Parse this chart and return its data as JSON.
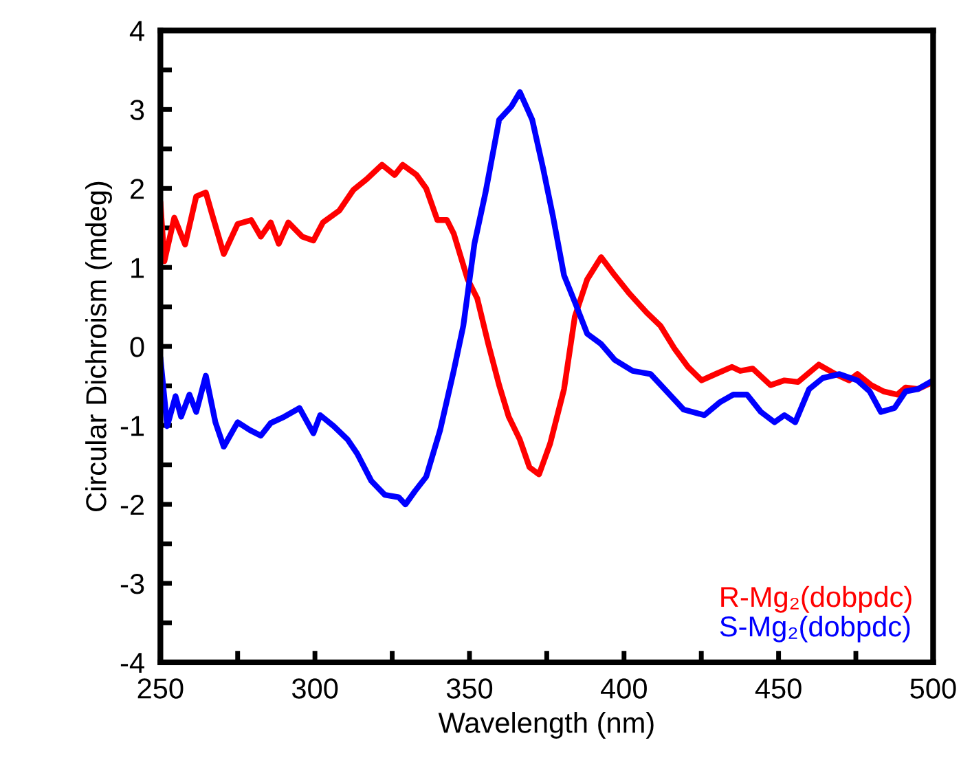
{
  "chart_data": {
    "type": "line",
    "xlabel": "Wavelength (nm)",
    "ylabel": "Circular Dichroism (mdeg)",
    "xlim": [
      250,
      500
    ],
    "ylim": [
      -4,
      4
    ],
    "xticks": [
      250,
      {
        "value": 275,
        "label": null
      },
      300,
      {
        "value": 325,
        "label": null
      },
      350,
      {
        "value": 375,
        "label": null
      },
      400,
      {
        "value": 425,
        "label": null
      },
      450,
      {
        "value": 475,
        "label": null
      },
      500
    ],
    "yticks": [
      -4,
      {
        "value": -3.5,
        "label": null
      },
      -3,
      {
        "value": -2.5,
        "label": null
      },
      -2,
      {
        "value": -1.5,
        "label": null
      },
      -1,
      {
        "value": -0.5,
        "label": null
      },
      0,
      {
        "value": 0.5,
        "label": null
      },
      1,
      {
        "value": 1.5,
        "label": null
      },
      2,
      {
        "value": 2.5,
        "label": null
      },
      3,
      {
        "value": 3.5,
        "label": null
      },
      4
    ],
    "grid": false,
    "legend": "bottom right",
    "marker": "none",
    "line_style": "solid",
    "series": [
      {
        "name": "R-Mg₂(dobpdc)",
        "color": "#ff0000",
        "x": [
          250,
          251.3,
          254.5,
          258,
          261.6,
          264.7,
          266.9,
          270.5,
          275,
          279.4,
          282.5,
          285.7,
          288.3,
          291.4,
          295.9,
          299.5,
          302.6,
          307.9,
          312.4,
          316.8,
          321.7,
          325.8,
          328.4,
          332.9,
          336,
          339.6,
          342.7,
          344.9,
          349.4,
          352.5,
          356.1,
          359.6,
          362.7,
          366.3,
          369.4,
          372.5,
          376.1,
          380.6,
          384.1,
          388.1,
          392.6,
          397,
          401.5,
          407.3,
          411.8,
          416.2,
          420.7,
          425.1,
          429.6,
          434.9,
          437.6,
          441.6,
          447.4,
          451.9,
          456.3,
          463,
          468.4,
          472.8,
          475.5,
          480,
          484,
          488.4,
          491.1,
          495.1,
          500
        ],
        "values": [
          1.83,
          1.08,
          1.63,
          1.29,
          1.9,
          1.95,
          1.65,
          1.17,
          1.55,
          1.6,
          1.39,
          1.57,
          1.3,
          1.57,
          1.39,
          1.34,
          1.57,
          1.72,
          1.98,
          2.12,
          2.3,
          2.17,
          2.3,
          2.17,
          2.0,
          1.6,
          1.6,
          1.43,
          0.85,
          0.61,
          0.03,
          -0.49,
          -0.89,
          -1.18,
          -1.53,
          -1.62,
          -1.23,
          -0.54,
          0.38,
          0.85,
          1.13,
          0.9,
          0.68,
          0.43,
          0.26,
          -0.02,
          -0.26,
          -0.43,
          -0.35,
          -0.26,
          -0.31,
          -0.28,
          -0.49,
          -0.43,
          -0.45,
          -0.23,
          -0.35,
          -0.43,
          -0.35,
          -0.49,
          -0.57,
          -0.61,
          -0.52,
          -0.54,
          -0.45
        ]
      },
      {
        "name": "S-Mg₂(dobpdc)",
        "color": "#0000ff",
        "x": [
          250,
          252.2,
          254.9,
          256.7,
          259.4,
          261.6,
          264.7,
          267.8,
          270.5,
          275,
          279,
          282.5,
          285.7,
          290.1,
          295,
          299.5,
          301.7,
          306.1,
          310.6,
          313.7,
          318.2,
          322.6,
          327.1,
          329.3,
          332.4,
          336,
          340.5,
          344.9,
          348,
          351.6,
          355.2,
          359.6,
          363.6,
          366.3,
          370.3,
          373.9,
          377,
          380.6,
          384.1,
          388.1,
          392.6,
          397,
          402.8,
          408.6,
          413.1,
          419.3,
          426,
          430.9,
          435.4,
          439.8,
          444.3,
          448.7,
          451.9,
          455.4,
          459.9,
          464.3,
          469.7,
          475.5,
          479.5,
          483.1,
          487.5,
          491.1,
          495.1,
          500
        ],
        "values": [
          -0.14,
          -1.01,
          -0.63,
          -0.89,
          -0.61,
          -0.83,
          -0.37,
          -0.96,
          -1.27,
          -0.96,
          -1.06,
          -1.13,
          -0.97,
          -0.89,
          -0.78,
          -1.1,
          -0.87,
          -1.01,
          -1.18,
          -1.36,
          -1.7,
          -1.88,
          -1.91,
          -2.0,
          -1.83,
          -1.65,
          -1.06,
          -0.31,
          0.26,
          1.3,
          1.95,
          2.87,
          3.04,
          3.22,
          2.87,
          2.24,
          1.65,
          0.9,
          0.56,
          0.16,
          0.03,
          -0.17,
          -0.31,
          -0.35,
          -0.54,
          -0.8,
          -0.87,
          -0.71,
          -0.61,
          -0.61,
          -0.83,
          -0.96,
          -0.87,
          -0.96,
          -0.54,
          -0.4,
          -0.35,
          -0.43,
          -0.57,
          -0.83,
          -0.78,
          -0.57,
          -0.54,
          -0.43
        ]
      }
    ]
  }
}
